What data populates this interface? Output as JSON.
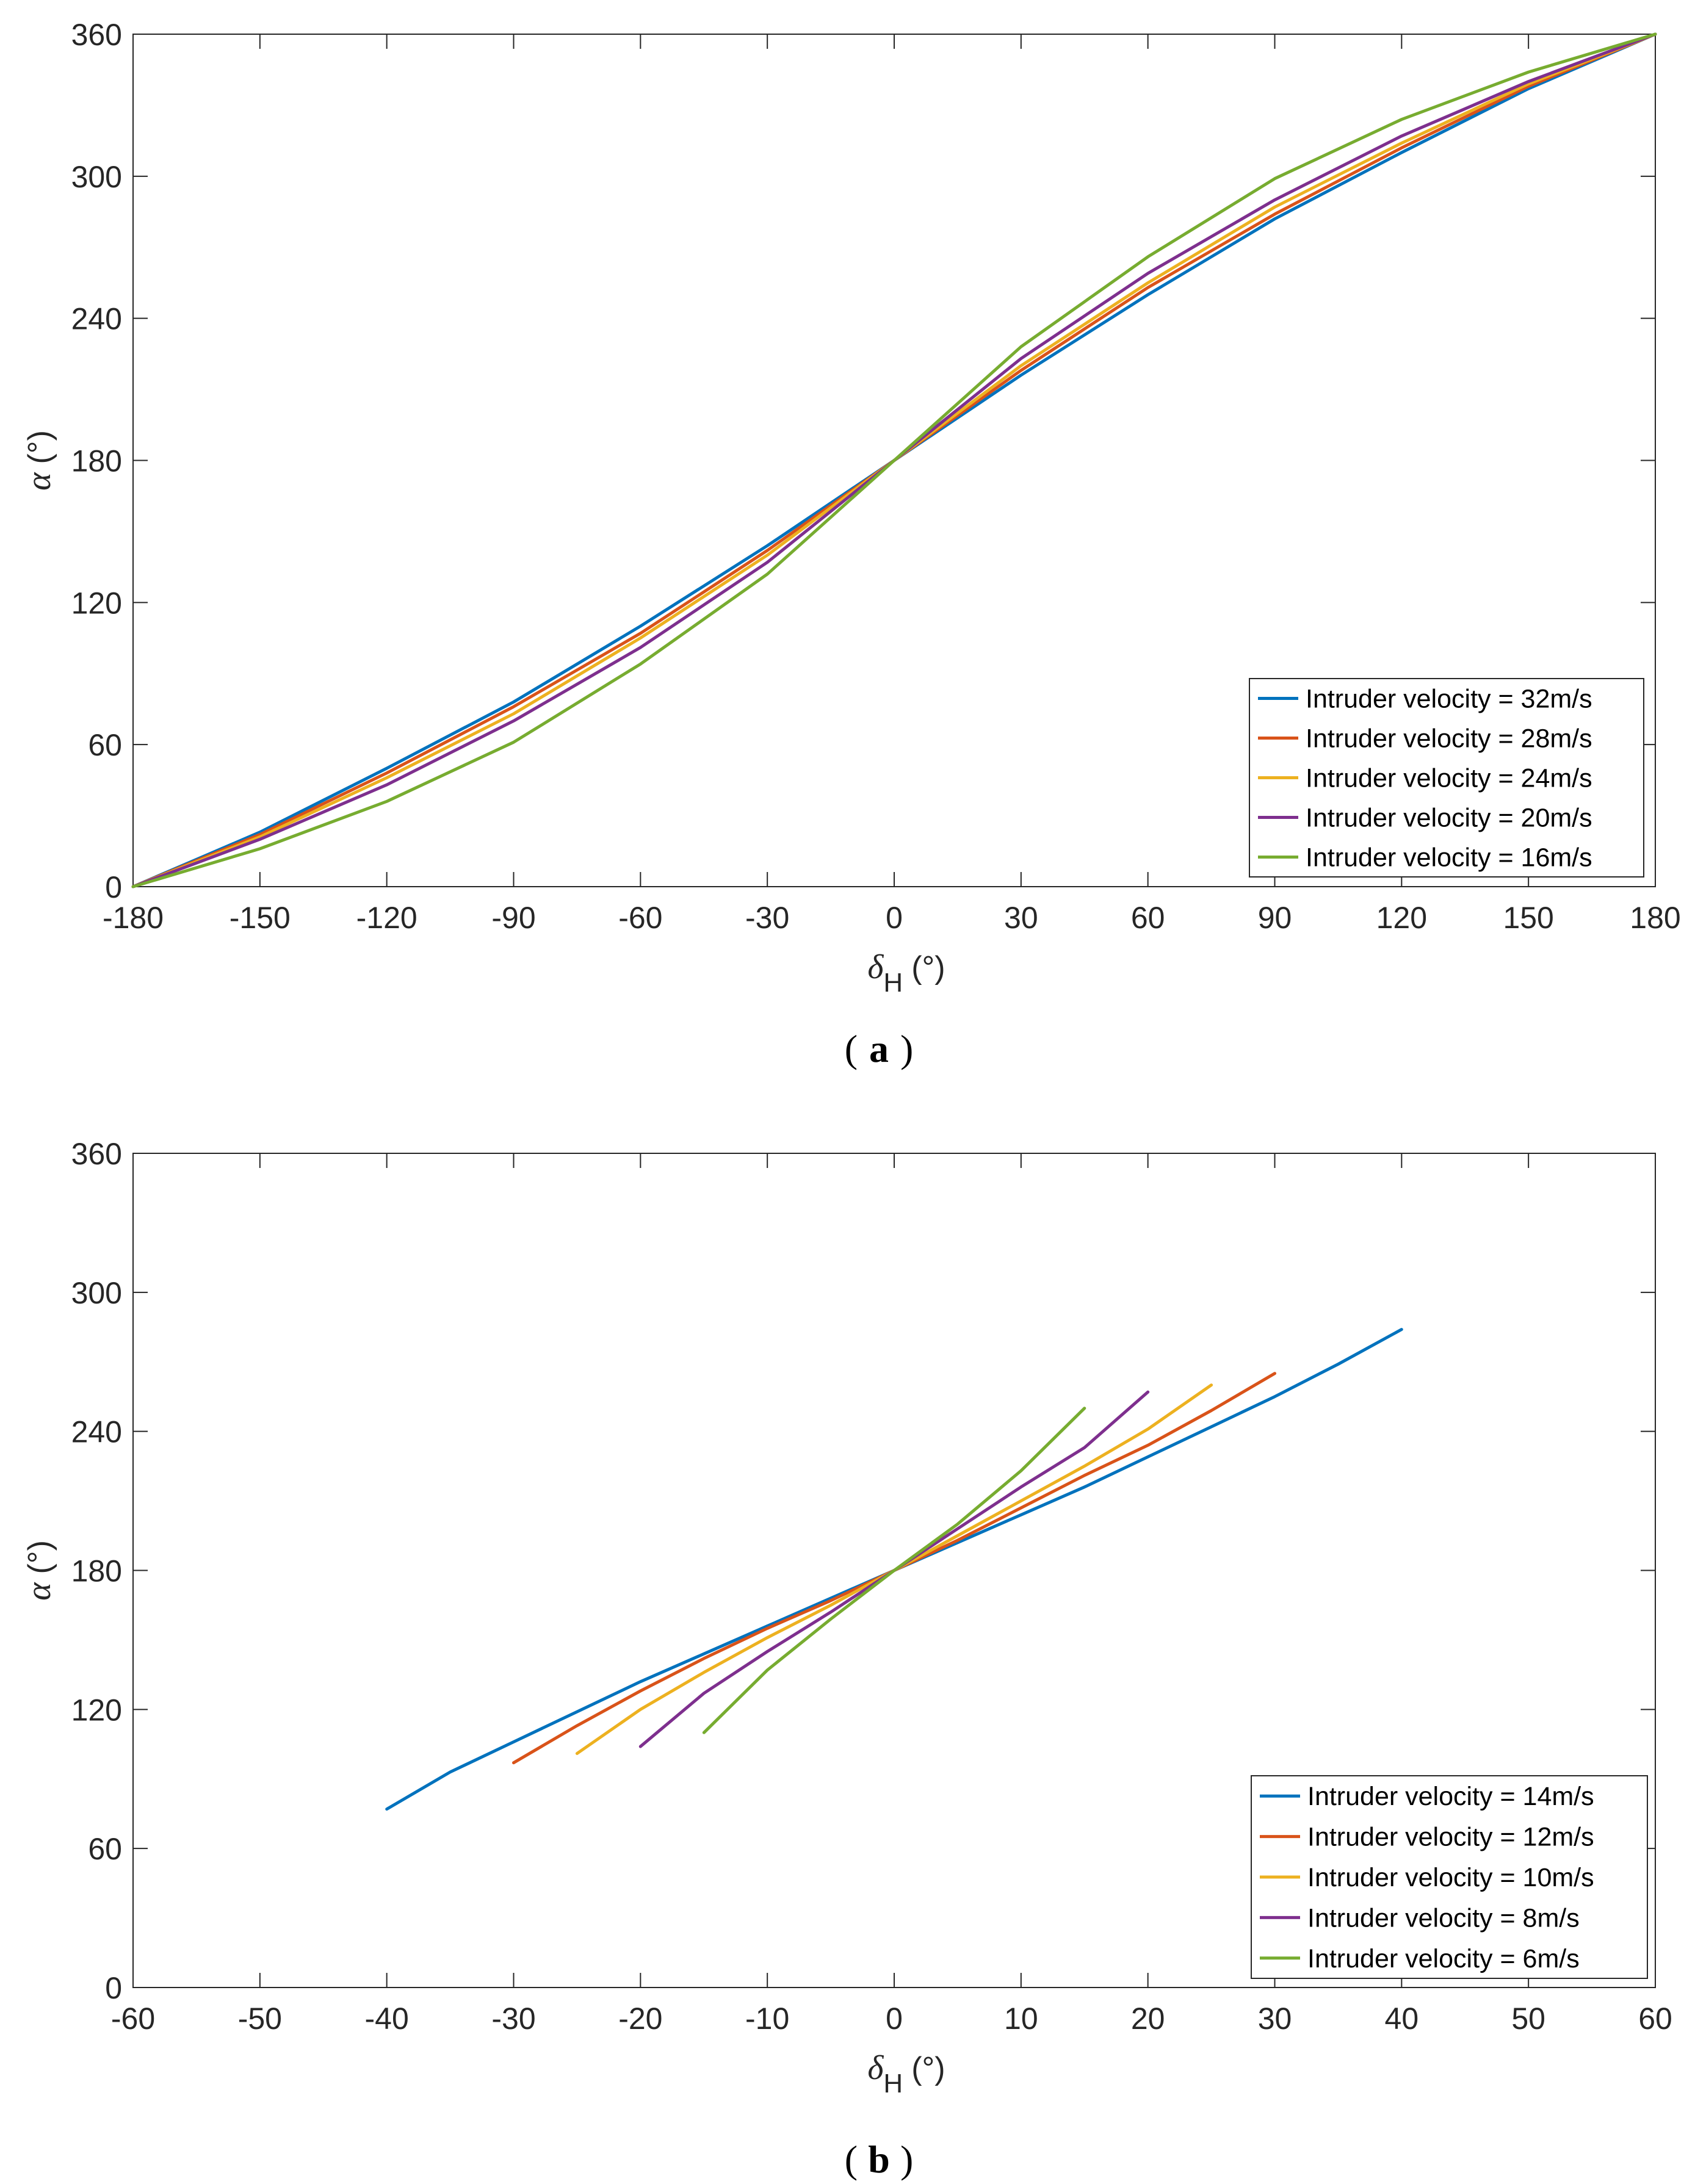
{
  "chart_data": [
    {
      "type": "line",
      "panel_label": "a",
      "xlabel": "δ",
      "xlabel_sub": "H",
      "xlabel_unit": "(°)",
      "ylabel": "α",
      "ylabel_unit": "(°)",
      "xlim": [
        -180,
        180
      ],
      "ylim": [
        0,
        360
      ],
      "xticks": [
        -180,
        -150,
        -120,
        -90,
        -60,
        -30,
        0,
        30,
        60,
        90,
        120,
        150,
        180
      ],
      "yticks": [
        0,
        60,
        120,
        180,
        240,
        300,
        360
      ],
      "legend_position": "bottom-right",
      "series": [
        {
          "name": "Intruder velocity = 32m/s",
          "color": "#0072BD",
          "x": [
            -180,
            -150,
            -120,
            -90,
            -60,
            -30,
            0,
            30,
            60,
            90,
            120,
            150,
            180
          ],
          "y": [
            0,
            23,
            50,
            78,
            110,
            144,
            180,
            216,
            250,
            282,
            310,
            337,
            360
          ]
        },
        {
          "name": "Intruder velocity = 28m/s",
          "color": "#D95319",
          "x": [
            -180,
            -150,
            -120,
            -90,
            -60,
            -30,
            0,
            30,
            60,
            90,
            120,
            150,
            180
          ],
          "y": [
            0,
            22,
            48,
            76,
            107,
            142,
            180,
            218,
            253,
            284,
            312,
            338,
            360
          ]
        },
        {
          "name": "Intruder velocity = 24m/s",
          "color": "#EDB120",
          "x": [
            -180,
            -150,
            -120,
            -90,
            -60,
            -30,
            0,
            30,
            60,
            90,
            120,
            150,
            180
          ],
          "y": [
            0,
            21,
            46,
            73,
            105,
            140,
            180,
            220,
            255,
            287,
            314,
            339,
            360
          ]
        },
        {
          "name": "Intruder velocity = 20m/s",
          "color": "#7E2F8E",
          "x": [
            -180,
            -150,
            -120,
            -90,
            -60,
            -30,
            0,
            30,
            60,
            90,
            120,
            150,
            180
          ],
          "y": [
            0,
            20,
            43,
            70,
            101,
            137,
            180,
            223,
            259,
            290,
            317,
            340,
            360
          ]
        },
        {
          "name": "Intruder velocity = 16m/s",
          "color": "#77AC30",
          "x": [
            -180,
            -150,
            -120,
            -90,
            -60,
            -30,
            0,
            30,
            60,
            90,
            120,
            150,
            180
          ],
          "y": [
            0,
            16,
            36,
            61,
            94,
            132,
            180,
            228,
            266,
            299,
            324,
            344,
            360
          ]
        }
      ]
    },
    {
      "type": "line",
      "panel_label": "b",
      "xlabel": "δ",
      "xlabel_sub": "H",
      "xlabel_unit": "(°)",
      "ylabel": "α",
      "ylabel_unit": "(°)",
      "xlim": [
        -60,
        60
      ],
      "ylim": [
        0,
        360
      ],
      "xticks": [
        -60,
        -50,
        -40,
        -30,
        -20,
        -10,
        0,
        10,
        20,
        30,
        40,
        50,
        60
      ],
      "yticks": [
        0,
        60,
        120,
        180,
        240,
        300,
        360
      ],
      "legend_position": "bottom-right",
      "series": [
        {
          "name": "Intruder velocity = 14m/s",
          "color": "#0072BD",
          "x": [
            -40,
            -35,
            -30,
            -25,
            -20,
            -15,
            -10,
            -5,
            0,
            5,
            10,
            15,
            20,
            25,
            30,
            35,
            40
          ],
          "y": [
            77,
            93,
            106,
            119,
            132,
            144,
            156,
            168,
            180,
            192,
            204,
            216,
            229,
            242,
            255,
            269,
            284
          ]
        },
        {
          "name": "Intruder velocity = 12m/s",
          "color": "#D95319",
          "x": [
            -30,
            -25,
            -20,
            -15,
            -10,
            -5,
            0,
            5,
            10,
            15,
            20,
            25,
            30
          ],
          "y": [
            97,
            113,
            128,
            142,
            155,
            167,
            180,
            193,
            207,
            221,
            234,
            249,
            265
          ]
        },
        {
          "name": "Intruder velocity = 10m/s",
          "color": "#EDB120",
          "x": [
            -25,
            -20,
            -15,
            -10,
            -5,
            0,
            5,
            10,
            15,
            20,
            25
          ],
          "y": [
            101,
            120,
            136,
            151,
            165,
            180,
            195,
            210,
            225,
            241,
            260
          ]
        },
        {
          "name": "Intruder velocity = 8m/s",
          "color": "#7E2F8E",
          "x": [
            -20,
            -15,
            -10,
            -5,
            0,
            5,
            10,
            15,
            20
          ],
          "y": [
            104,
            127,
            145,
            162,
            180,
            198,
            216,
            233,
            257
          ]
        },
        {
          "name": "Intruder velocity = 6m/s",
          "color": "#77AC30",
          "x": [
            -15,
            -10,
            -5,
            0,
            5,
            10,
            15
          ],
          "y": [
            110,
            137,
            159,
            180,
            200,
            223,
            250
          ]
        }
      ]
    }
  ]
}
